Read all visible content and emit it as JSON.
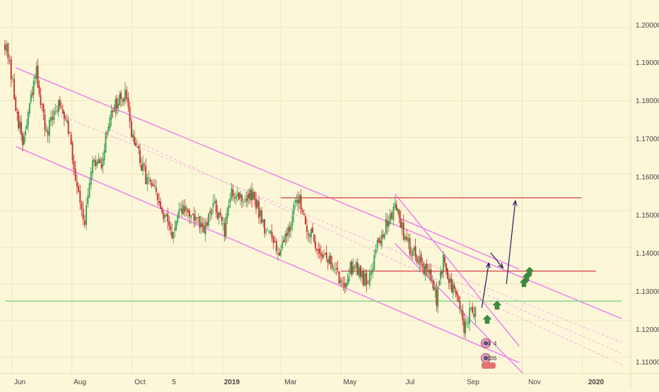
{
  "chart_data": {
    "type": "candlestick",
    "title": "",
    "xlabel": "",
    "ylabel": "",
    "ylim": [
      1.1055,
      1.2075
    ],
    "x_tick_labels": [
      "Jun",
      "Aug",
      "Oct",
      "5",
      "2019",
      "Mar",
      "May",
      "Jul",
      "Sep",
      "Nov",
      "2020"
    ],
    "y_tick_labels": [
      "1.20000",
      "1.19000",
      "1.18000",
      "1.17000",
      "1.16000",
      "1.15000",
      "1.14000",
      "1.13000",
      "1.12000",
      "1.11000"
    ],
    "grid": true,
    "price_path": [
      [
        "2018-05-25",
        1.196
      ],
      [
        "2018-06-05",
        1.179
      ],
      [
        "2018-06-12",
        1.168
      ],
      [
        "2018-06-26",
        1.188
      ],
      [
        "2018-07-06",
        1.17
      ],
      [
        "2018-07-17",
        1.179
      ],
      [
        "2018-07-27",
        1.176
      ],
      [
        "2018-08-03",
        1.162
      ],
      [
        "2018-08-14",
        1.147
      ],
      [
        "2018-08-22",
        1.162
      ],
      [
        "2018-08-31",
        1.163
      ],
      [
        "2018-09-10",
        1.178
      ],
      [
        "2018-09-24",
        1.181
      ],
      [
        "2018-10-02",
        1.17
      ],
      [
        "2018-10-12",
        1.161
      ],
      [
        "2018-10-24",
        1.155
      ],
      [
        "2018-11-02",
        1.148
      ],
      [
        "2018-11-12",
        1.144
      ],
      [
        "2018-11-22",
        1.151
      ],
      [
        "2018-12-03",
        1.148
      ],
      [
        "2018-12-13",
        1.144
      ],
      [
        "2018-12-24",
        1.152
      ],
      [
        "2019-01-03",
        1.144
      ],
      [
        "2019-01-10",
        1.156
      ],
      [
        "2019-01-22",
        1.153
      ],
      [
        "2019-02-01",
        1.154
      ],
      [
        "2019-02-14",
        1.145
      ],
      [
        "2019-02-26",
        1.139
      ],
      [
        "2019-03-07",
        1.144
      ],
      [
        "2019-03-20",
        1.154
      ],
      [
        "2019-03-29",
        1.144
      ],
      [
        "2019-04-08",
        1.14
      ],
      [
        "2019-04-22",
        1.135
      ],
      [
        "2019-05-02",
        1.13
      ],
      [
        "2019-05-15",
        1.136
      ],
      [
        "2019-05-27",
        1.13
      ],
      [
        "2019-06-07",
        1.141
      ],
      [
        "2019-06-20",
        1.148
      ],
      [
        "2019-06-25",
        1.153
      ],
      [
        "2019-07-02",
        1.145
      ],
      [
        "2019-07-10",
        1.14
      ],
      [
        "2019-07-20",
        1.137
      ],
      [
        "2019-07-30",
        1.132
      ],
      [
        "2019-08-06",
        1.126
      ],
      [
        "2019-08-13",
        1.136
      ],
      [
        "2019-08-20",
        1.13
      ],
      [
        "2019-08-27",
        1.126
      ],
      [
        "2019-09-03",
        1.118
      ],
      [
        "2019-09-10",
        1.122
      ],
      [
        "2019-09-16",
        1.123
      ]
    ],
    "annotations": {
      "horizontal_levels": [
        {
          "from": "2019-03-01",
          "to": "2019-12-31",
          "price": 1.1535,
          "color": "#e06666"
        },
        {
          "from": "2019-05-01",
          "to": "2020-01-15",
          "price": 1.1335,
          "color": "#e06666"
        },
        {
          "from": "2018-05-25",
          "to": "2020-02-10",
          "price": 1.1253,
          "color": "#90d690"
        }
      ],
      "channel_lines": [
        {
          "from": [
            "2018-06-05",
            1.189
          ],
          "to": [
            "2020-02-10",
            1.1205
          ],
          "color": "#ee82ee"
        },
        {
          "from": [
            "2018-06-05",
            1.1675
          ],
          "to": [
            "2019-10-29",
            1.1085
          ],
          "color": "#ee82ee"
        },
        {
          "from": [
            "2019-06-25",
            1.1545
          ],
          "to": [
            "2019-10-29",
            1.113
          ],
          "color": "#ee82ee"
        },
        {
          "from": [
            "2019-06-25",
            1.141
          ],
          "to": [
            "2019-11-02",
            1.1055
          ],
          "color": "#ee82ee"
        },
        {
          "from": [
            "2019-06-29",
            1.148
          ],
          "to": [
            "2019-10-29",
            1.134
          ],
          "color": "#ee82ee"
        }
      ],
      "forecast_arrows": [
        {
          "from": [
            "2019-09-21",
            1.1235
          ],
          "to": [
            "2019-09-28",
            1.1355
          ]
        },
        {
          "from": [
            "2019-10-16",
            1.13
          ],
          "to": [
            "2019-10-25",
            1.1525
          ]
        },
        {
          "from": [
            "2019-09-30",
            1.1385
          ],
          "to": [
            "2019-10-12",
            1.1345
          ]
        }
      ],
      "badges": [
        "4",
        "4",
        "13",
        "6"
      ]
    }
  },
  "colors": {
    "background": "#fcf7d9",
    "grid": "#efe6bd",
    "up": "#2e9e4a",
    "down": "#c62828",
    "channel": "#ee82ee",
    "level": "#e06666",
    "support": "#90d690",
    "arrow": "#1f1a5c",
    "marker": "#3d8b3d",
    "axis_text": "#444444"
  }
}
